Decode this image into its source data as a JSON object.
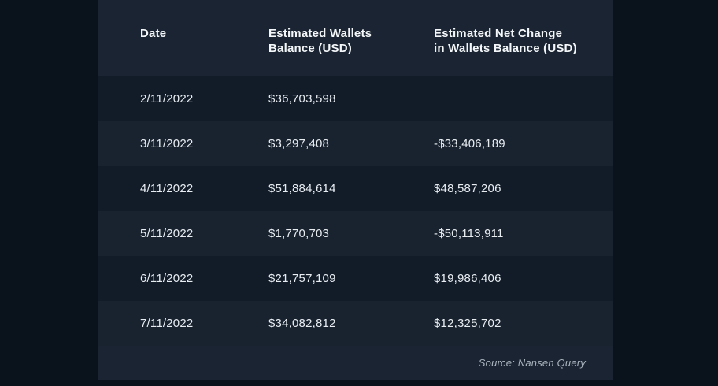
{
  "colors": {
    "page_background": "#0a121c",
    "header_band": "#1a2432",
    "row_dark": "#121c29",
    "row_light": "#19232f",
    "header_text": "#f4f7f9",
    "cell_text": "#e8edf2",
    "source_text": "#aab4bf"
  },
  "table": {
    "headers": [
      "Date",
      "Estimated Wallets\nBalance (USD)",
      "Estimated Net Change\nin Wallets Balance (USD)"
    ],
    "source": "Source: Nansen Query"
  },
  "chart_data": {
    "type": "table",
    "title": "",
    "columns": [
      "Date",
      "Estimated Wallets Balance (USD)",
      "Estimated Net Change in Wallets Balance (USD)"
    ],
    "rows": [
      [
        "2/11/2022",
        "$36,703,598",
        ""
      ],
      [
        "3/11/2022",
        "$3,297,408",
        "-$33,406,189"
      ],
      [
        "4/11/2022",
        "$51,884,614",
        "$48,587,206"
      ],
      [
        "5/11/2022",
        "$1,770,703",
        "-$50,113,911"
      ],
      [
        "6/11/2022",
        "$21,757,109",
        "$19,986,406"
      ],
      [
        "7/11/2022",
        "$34,082,812",
        "$12,325,702"
      ]
    ],
    "source": "Source: Nansen Query",
    "layout": {
      "striped": true,
      "grid": false,
      "source_position": "bottom-right"
    }
  }
}
